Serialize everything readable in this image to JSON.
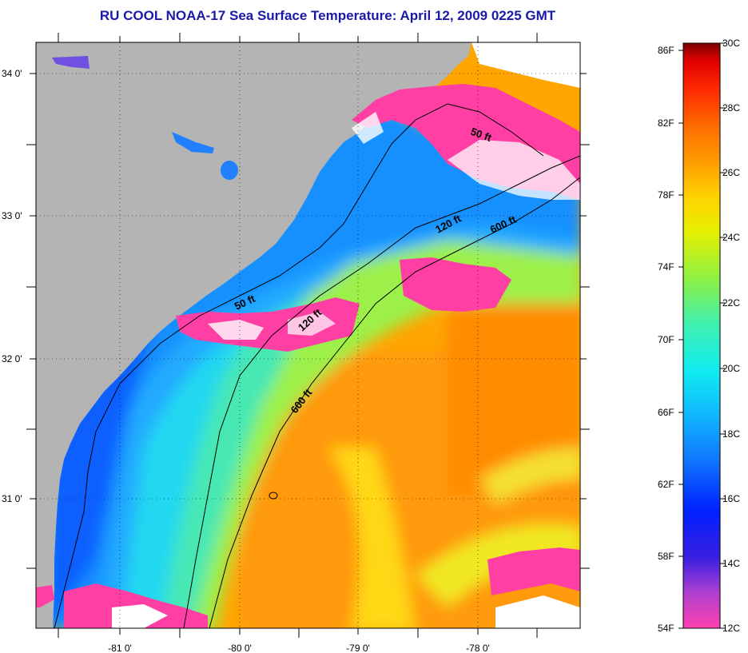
{
  "title": "RU COOL  NOAA-17  Sea Surface Temperature:  April 12, 2009 0225 GMT",
  "colors": {
    "land": "#b4b4b4",
    "cloud": "#ff3fa3",
    "title": "#1a1aa6"
  },
  "map": {
    "lon_labels": [
      "-81 0'",
      "-80 0'",
      "-79 0'",
      "-78 0'"
    ],
    "lat_labels": [
      "34 0'",
      "33 0'",
      "32 0'",
      "31 0'"
    ],
    "contour_labels": [
      "50 ft",
      "120 ft",
      "600 ft",
      "50 ft",
      "120 ft",
      "600 ft"
    ]
  },
  "colorbar": {
    "fahrenheit_labels": [
      "86F",
      "82F",
      "78F",
      "74F",
      "70F",
      "66F",
      "62F",
      "58F",
      "54F"
    ],
    "celsius_labels": [
      "30C",
      "28C",
      "26C",
      "24C",
      "22C",
      "20C",
      "18C",
      "16C",
      "14C",
      "12C"
    ],
    "stops": [
      "#ff3fb0",
      "#9a3fd0",
      "#3a1fe0",
      "#0020ff",
      "#1070ff",
      "#10b4ff",
      "#10ecf0",
      "#40f0b0",
      "#90f040",
      "#e8f000",
      "#ffd000",
      "#ff9a00",
      "#ff6a00",
      "#ff2a00",
      "#e00000",
      "#7a0000"
    ]
  }
}
